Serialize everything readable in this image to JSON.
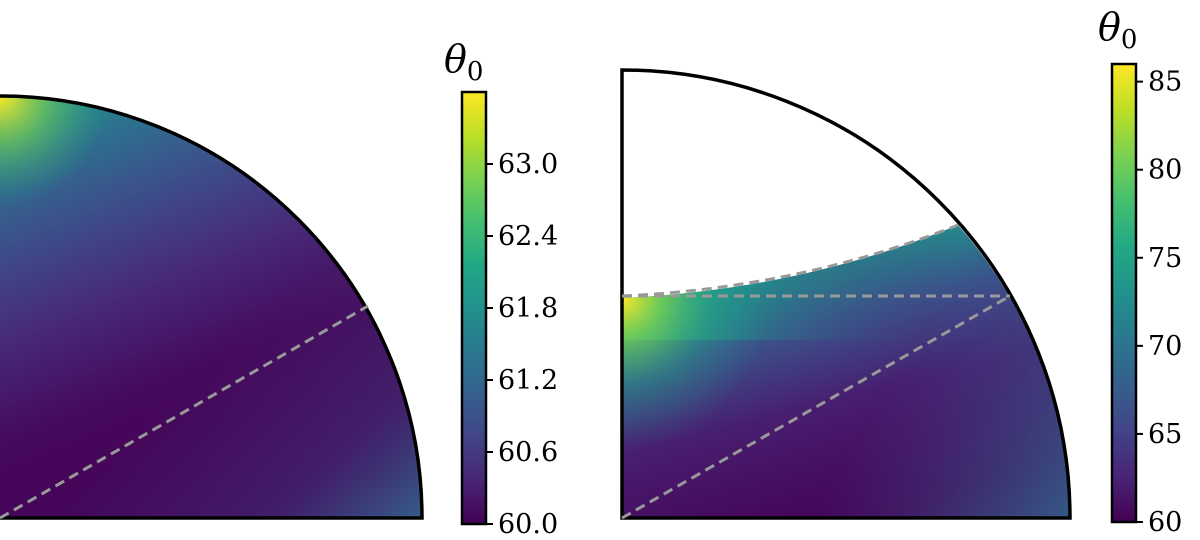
{
  "chart_data": [
    {
      "type": "heatmap",
      "shape": "quarter-disk",
      "title": "",
      "xlabel": "",
      "ylabel": "",
      "colormap": "viridis",
      "colorbar": {
        "label_main": "θ",
        "label_sub": "0",
        "range": [
          60.0,
          63.6
        ],
        "ticks": [
          60.0,
          60.6,
          61.2,
          61.8,
          62.4,
          63.0
        ],
        "tick_labels": [
          "60.0",
          "60.6",
          "61.2",
          "61.8",
          "62.4",
          "63.0"
        ]
      },
      "dashed_lines": [
        "diagonal from origin at ~30°"
      ],
      "description_values": {
        "max_at": "top of vertical axis",
        "max_value": 63.6,
        "min_value": 60.0
      }
    },
    {
      "type": "heatmap",
      "shape": "quarter-disk (lower region only colored)",
      "title": "",
      "xlabel": "",
      "ylabel": "",
      "colormap": "viridis",
      "colorbar": {
        "label_main": "θ",
        "label_sub": "0",
        "range": [
          60,
          86
        ],
        "ticks": [
          60,
          65,
          70,
          75,
          80,
          85
        ],
        "tick_labels": [
          "60",
          "65",
          "70",
          "75",
          "80",
          "85"
        ]
      },
      "dashed_lines": [
        "diagonal from origin at ~30°",
        "horizontal at ~0.5 radius",
        "curved upper boundary of colored region"
      ],
      "description_values": {
        "max_at": "left edge at horizontal dashed line",
        "max_value": 86,
        "min_value": 60
      }
    }
  ]
}
